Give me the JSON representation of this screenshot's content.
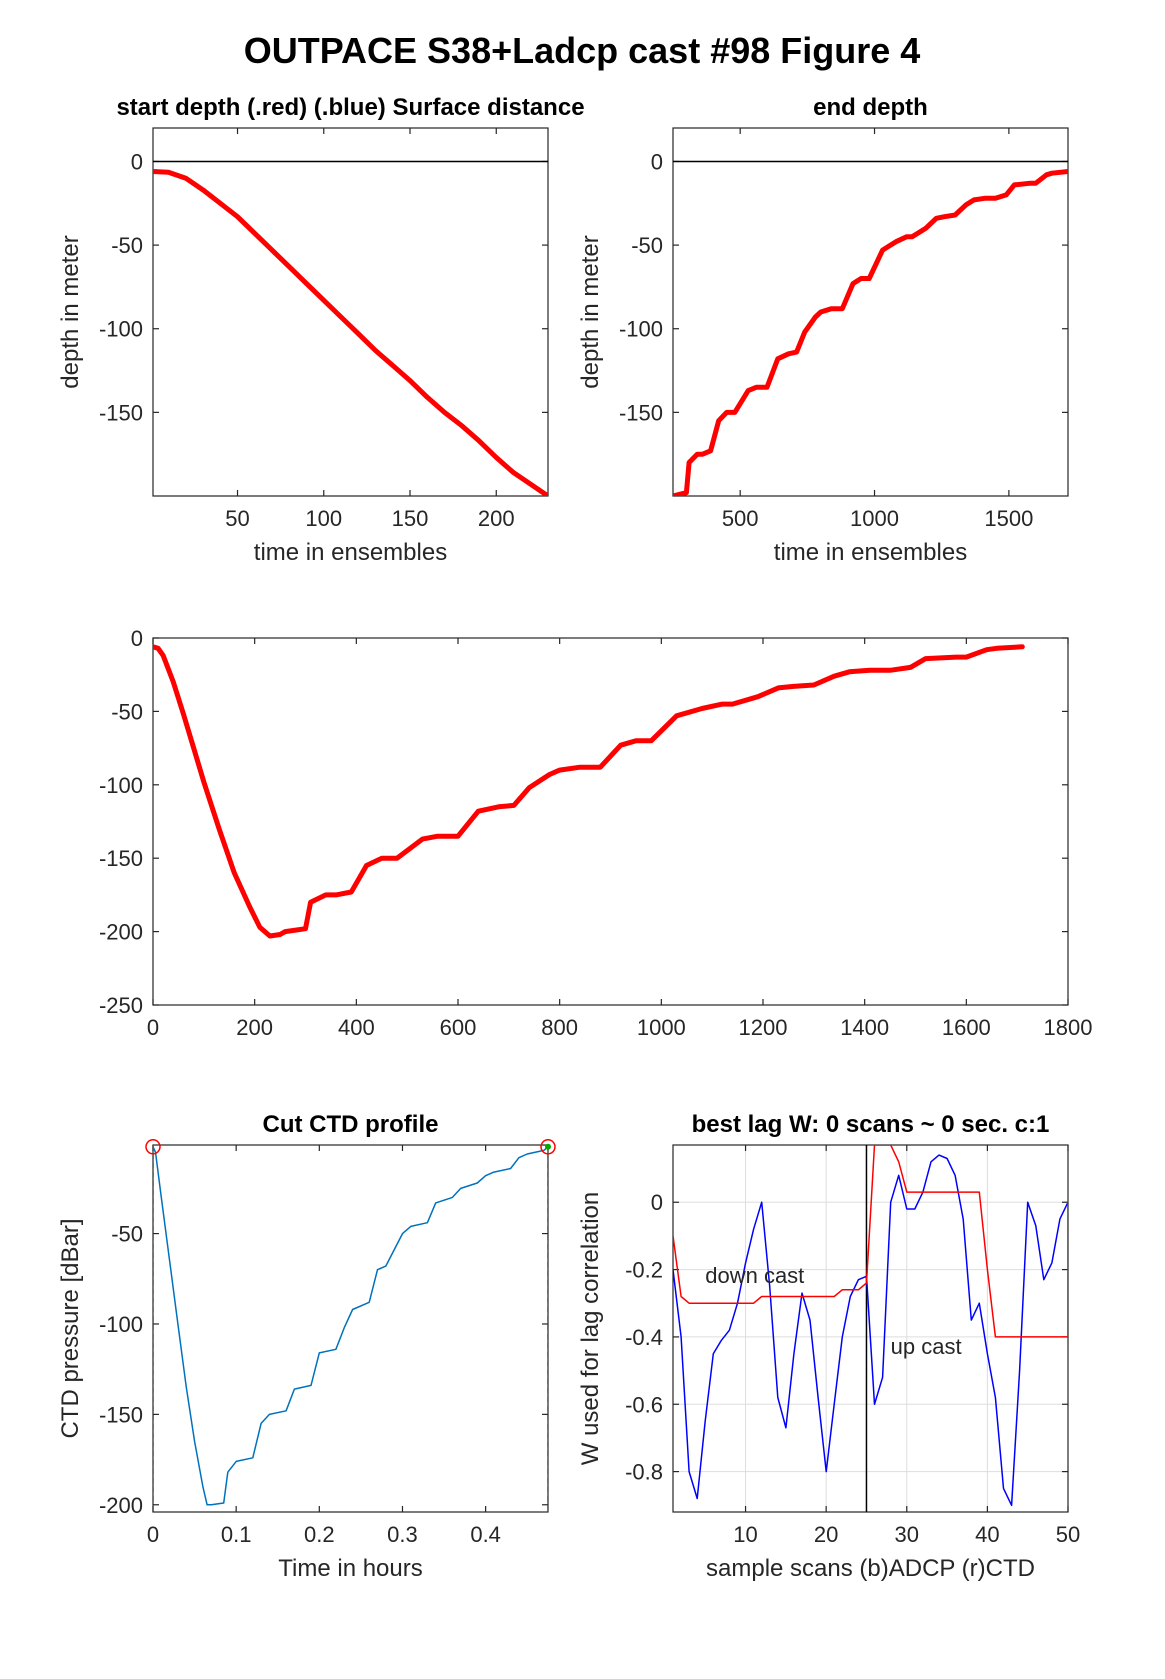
{
  "figure": {
    "title": "OUTPACE S38+Ladcp cast #98   Figure 4"
  },
  "chart_data": [
    {
      "id": "p1",
      "type": "line",
      "title": "start depth (.red) (.blue) Surface distance",
      "xlabel": "time in ensembles",
      "ylabel": "depth in meter",
      "xlim": [
        1,
        230
      ],
      "ylim": [
        -200,
        20
      ],
      "xticks": [
        50,
        100,
        150,
        200
      ],
      "yticks": [
        0,
        -50,
        -100,
        -150
      ],
      "reference_line": 0,
      "grid": false,
      "series": [
        {
          "color": "#ff0000",
          "x": [
            1,
            10,
            20,
            30,
            40,
            50,
            60,
            70,
            80,
            90,
            100,
            110,
            120,
            130,
            140,
            150,
            160,
            170,
            180,
            190,
            200,
            210,
            220,
            230
          ],
          "y": [
            -6,
            -6.5,
            -10,
            -17,
            -25,
            -33,
            -43,
            -53,
            -63,
            -73,
            -83,
            -93,
            -103,
            -113,
            -122,
            -131,
            -141,
            -150,
            -158,
            -167,
            -177,
            -186,
            -193,
            -200
          ]
        }
      ]
    },
    {
      "id": "p2",
      "type": "line",
      "title": "end depth",
      "xlabel": "time in ensembles",
      "ylabel": "depth in meter",
      "xlim": [
        250,
        1720
      ],
      "ylim": [
        -200,
        20
      ],
      "xticks": [
        500,
        1000,
        1500
      ],
      "yticks": [
        0,
        -50,
        -100,
        -150
      ],
      "reference_line": 0,
      "grid": false,
      "series": [
        {
          "color": "#ff0000",
          "x": [
            250,
            300,
            310,
            340,
            360,
            390,
            420,
            450,
            480,
            530,
            560,
            600,
            640,
            680,
            710,
            740,
            780,
            800,
            840,
            880,
            920,
            950,
            980,
            1030,
            1080,
            1120,
            1140,
            1190,
            1230,
            1260,
            1300,
            1340,
            1370,
            1410,
            1450,
            1490,
            1520,
            1580,
            1600,
            1640,
            1660,
            1720
          ],
          "y": [
            -200,
            -198,
            -180,
            -175,
            -175,
            -173,
            -155,
            -150,
            -150,
            -137,
            -135,
            -135,
            -118,
            -115,
            -114,
            -102,
            -93,
            -90,
            -88,
            -88,
            -73,
            -70,
            -70,
            -53,
            -48,
            -45,
            -45,
            -40,
            -34,
            -33,
            -32,
            -26,
            -23,
            -22,
            -22,
            -20,
            -14,
            -13,
            -13,
            -8,
            -7,
            -6
          ]
        }
      ]
    },
    {
      "id": "p3",
      "type": "line",
      "title": "",
      "xlabel": "",
      "ylabel": "",
      "xlim": [
        0,
        1800
      ],
      "ylim": [
        -250,
        0
      ],
      "xticks": [
        0,
        200,
        400,
        600,
        800,
        1000,
        1200,
        1400,
        1600,
        1800
      ],
      "yticks": [
        0,
        -50,
        -100,
        -150,
        -200,
        -250
      ],
      "grid": false,
      "series": [
        {
          "color": "#ff0000",
          "x": [
            0,
            10,
            20,
            40,
            60,
            80,
            100,
            130,
            160,
            190,
            210,
            230,
            250,
            260,
            300,
            310,
            340,
            360,
            390,
            420,
            450,
            480,
            530,
            560,
            600,
            640,
            680,
            710,
            740,
            780,
            800,
            840,
            880,
            920,
            950,
            980,
            1030,
            1080,
            1120,
            1140,
            1190,
            1230,
            1260,
            1300,
            1340,
            1370,
            1410,
            1450,
            1490,
            1520,
            1580,
            1600,
            1640,
            1660,
            1710
          ],
          "y": [
            -6,
            -7,
            -12,
            -30,
            -52,
            -75,
            -98,
            -130,
            -160,
            -183,
            -197,
            -203,
            -202,
            -200,
            -198,
            -180,
            -175,
            -175,
            -173,
            -155,
            -150,
            -150,
            -137,
            -135,
            -135,
            -118,
            -115,
            -114,
            -102,
            -93,
            -90,
            -88,
            -88,
            -73,
            -70,
            -70,
            -53,
            -48,
            -45,
            -45,
            -40,
            -34,
            -33,
            -32,
            -26,
            -23,
            -22,
            -22,
            -20,
            -14,
            -13,
            -13,
            -8,
            -7,
            -6
          ]
        }
      ]
    },
    {
      "id": "p4",
      "type": "line",
      "title": "Cut CTD profile",
      "xlabel": "Time in hours",
      "ylabel": "CTD pressure [dBar]",
      "xlim": [
        0,
        0.475
      ],
      "ylim": [
        -204,
        -1
      ],
      "xticks": [
        0,
        0.1,
        0.2,
        0.3,
        0.4
      ],
      "yticks": [
        -50,
        -100,
        -150,
        -200
      ],
      "grid": false,
      "series": [
        {
          "color": "#0072bd",
          "x": [
            0,
            0.003,
            0.01,
            0.02,
            0.03,
            0.04,
            0.05,
            0.06,
            0.065,
            0.07,
            0.085,
            0.09,
            0.1,
            0.12,
            0.13,
            0.14,
            0.16,
            0.17,
            0.19,
            0.2,
            0.22,
            0.23,
            0.24,
            0.26,
            0.27,
            0.28,
            0.3,
            0.31,
            0.33,
            0.34,
            0.36,
            0.37,
            0.39,
            0.4,
            0.41,
            0.43,
            0.44,
            0.45,
            0.47,
            0.475
          ],
          "y": [
            -2,
            -5,
            -30,
            -65,
            -100,
            -135,
            -165,
            -190,
            -200,
            -200,
            -199,
            -182,
            -176,
            -174,
            -155,
            -150,
            -148,
            -136,
            -134,
            -116,
            -114,
            -102,
            -92,
            -88,
            -70,
            -68,
            -50,
            -46,
            -44,
            -33,
            -30,
            -25,
            -22,
            -18,
            -16,
            -14,
            -8,
            -6,
            -4,
            -2
          ]
        }
      ],
      "markers": [
        {
          "x": 0,
          "y": -2,
          "color": "#ff0000"
        },
        {
          "x": 0.475,
          "y": -2,
          "color": "#ff0000"
        },
        {
          "x": 0.475,
          "y": -2,
          "color": "#00aa00"
        }
      ],
      "edge_lines": {
        "color": "#ff0000",
        "x": [
          0,
          0.475
        ]
      }
    },
    {
      "id": "p5",
      "type": "line",
      "title": "best lag W: 0 scans ~ 0 sec.  c:1",
      "xlabel": "sample scans (b)ADCP (r)CTD",
      "ylabel": "W used for lag correlation",
      "xlim": [
        1,
        50
      ],
      "ylim": [
        -0.92,
        0.17
      ],
      "xticks": [
        10,
        20,
        30,
        40,
        50
      ],
      "yticks": [
        0,
        -0.2,
        -0.4,
        -0.6,
        -0.8
      ],
      "grid": true,
      "vline": 25,
      "annotations": [
        {
          "text": "down cast",
          "x": 5,
          "y": -0.24
        },
        {
          "text": "up cast",
          "x": 28,
          "y": -0.45
        }
      ],
      "series": [
        {
          "name": "ADCP",
          "color": "#0000ff",
          "x": [
            1,
            2,
            3,
            4,
            5,
            6,
            7,
            8,
            9,
            10,
            11,
            12,
            13,
            14,
            15,
            16,
            17,
            18,
            19,
            20,
            21,
            22,
            23,
            24,
            25,
            26,
            27,
            28,
            29,
            30,
            31,
            32,
            33,
            34,
            35,
            36,
            37,
            38,
            39,
            40,
            41,
            42,
            43,
            44,
            45,
            46,
            47,
            48,
            49,
            50
          ],
          "y": [
            -0.2,
            -0.4,
            -0.8,
            -0.88,
            -0.65,
            -0.45,
            -0.41,
            -0.38,
            -0.3,
            -0.18,
            -0.08,
            0.0,
            -0.25,
            -0.58,
            -0.67,
            -0.45,
            -0.27,
            -0.35,
            -0.58,
            -0.8,
            -0.6,
            -0.4,
            -0.28,
            -0.23,
            -0.22,
            -0.6,
            -0.52,
            0.0,
            0.08,
            -0.02,
            -0.02,
            0.03,
            0.12,
            0.14,
            0.13,
            0.08,
            -0.05,
            -0.35,
            -0.3,
            -0.45,
            -0.58,
            -0.85,
            -0.9,
            -0.5,
            0.0,
            -0.07,
            -0.23,
            -0.18,
            -0.05,
            0.0
          ]
        },
        {
          "name": "CTD",
          "color": "#ff0000",
          "x": [
            1,
            2,
            3,
            10,
            11,
            12,
            20,
            21,
            22,
            23,
            24,
            25,
            26,
            27,
            28,
            29,
            30,
            31,
            39,
            40,
            41,
            50,
            50
          ],
          "y": [
            -0.1,
            -0.28,
            -0.3,
            -0.3,
            -0.3,
            -0.28,
            -0.28,
            -0.28,
            -0.26,
            -0.26,
            -0.26,
            -0.24,
            0.17,
            0.17,
            0.17,
            0.12,
            0.03,
            0.03,
            0.03,
            -0.2,
            -0.4,
            -0.4,
            0.0
          ]
        }
      ]
    }
  ]
}
